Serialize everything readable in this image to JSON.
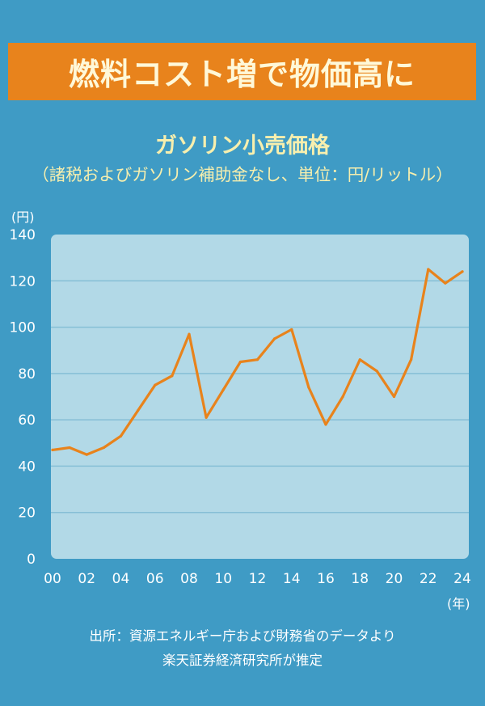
{
  "header": {
    "banner_title": "燃料コスト増で物価高に"
  },
  "chart_data": {
    "type": "line",
    "title": "ガソリン小売価格",
    "subtitle": "（諸税およびガソリン補助金なし、単位：円/リットル）",
    "y_unit_label": "(円)",
    "x_unit_label": "(年)",
    "x_tick_labels": [
      "00",
      "02",
      "04",
      "06",
      "08",
      "10",
      "12",
      "14",
      "16",
      "18",
      "20",
      "22",
      "24"
    ],
    "y_tick_labels": [
      "0",
      "20",
      "40",
      "60",
      "80",
      "100",
      "120",
      "140"
    ],
    "ylim": [
      0,
      140
    ],
    "xlim": [
      2000,
      2024
    ],
    "grid": true,
    "series": [
      {
        "x": [
          2000,
          2001,
          2002,
          2003,
          2004,
          2005,
          2006,
          2007,
          2008,
          2009,
          2010,
          2011,
          2012,
          2013,
          2014,
          2015,
          2016,
          2017,
          2018,
          2019,
          2020,
          2021,
          2022,
          2023,
          2024
        ],
        "y": [
          47,
          48,
          45,
          48,
          53,
          64,
          75,
          79,
          97,
          61,
          73,
          85,
          86,
          95,
          99,
          74,
          58,
          70,
          86,
          81,
          70,
          86,
          125,
          119,
          124
        ],
        "color": "#e8831c"
      }
    ],
    "colors": {
      "background": "#3f9bc5",
      "plot_background": "#b2d9e7",
      "gridline": "#86bfd6",
      "line": "#e8831c"
    }
  },
  "footer": {
    "source_line1": "出所：資源エネルギー庁および財務省のデータより",
    "source_line2": "楽天証券経済研究所が推定"
  }
}
